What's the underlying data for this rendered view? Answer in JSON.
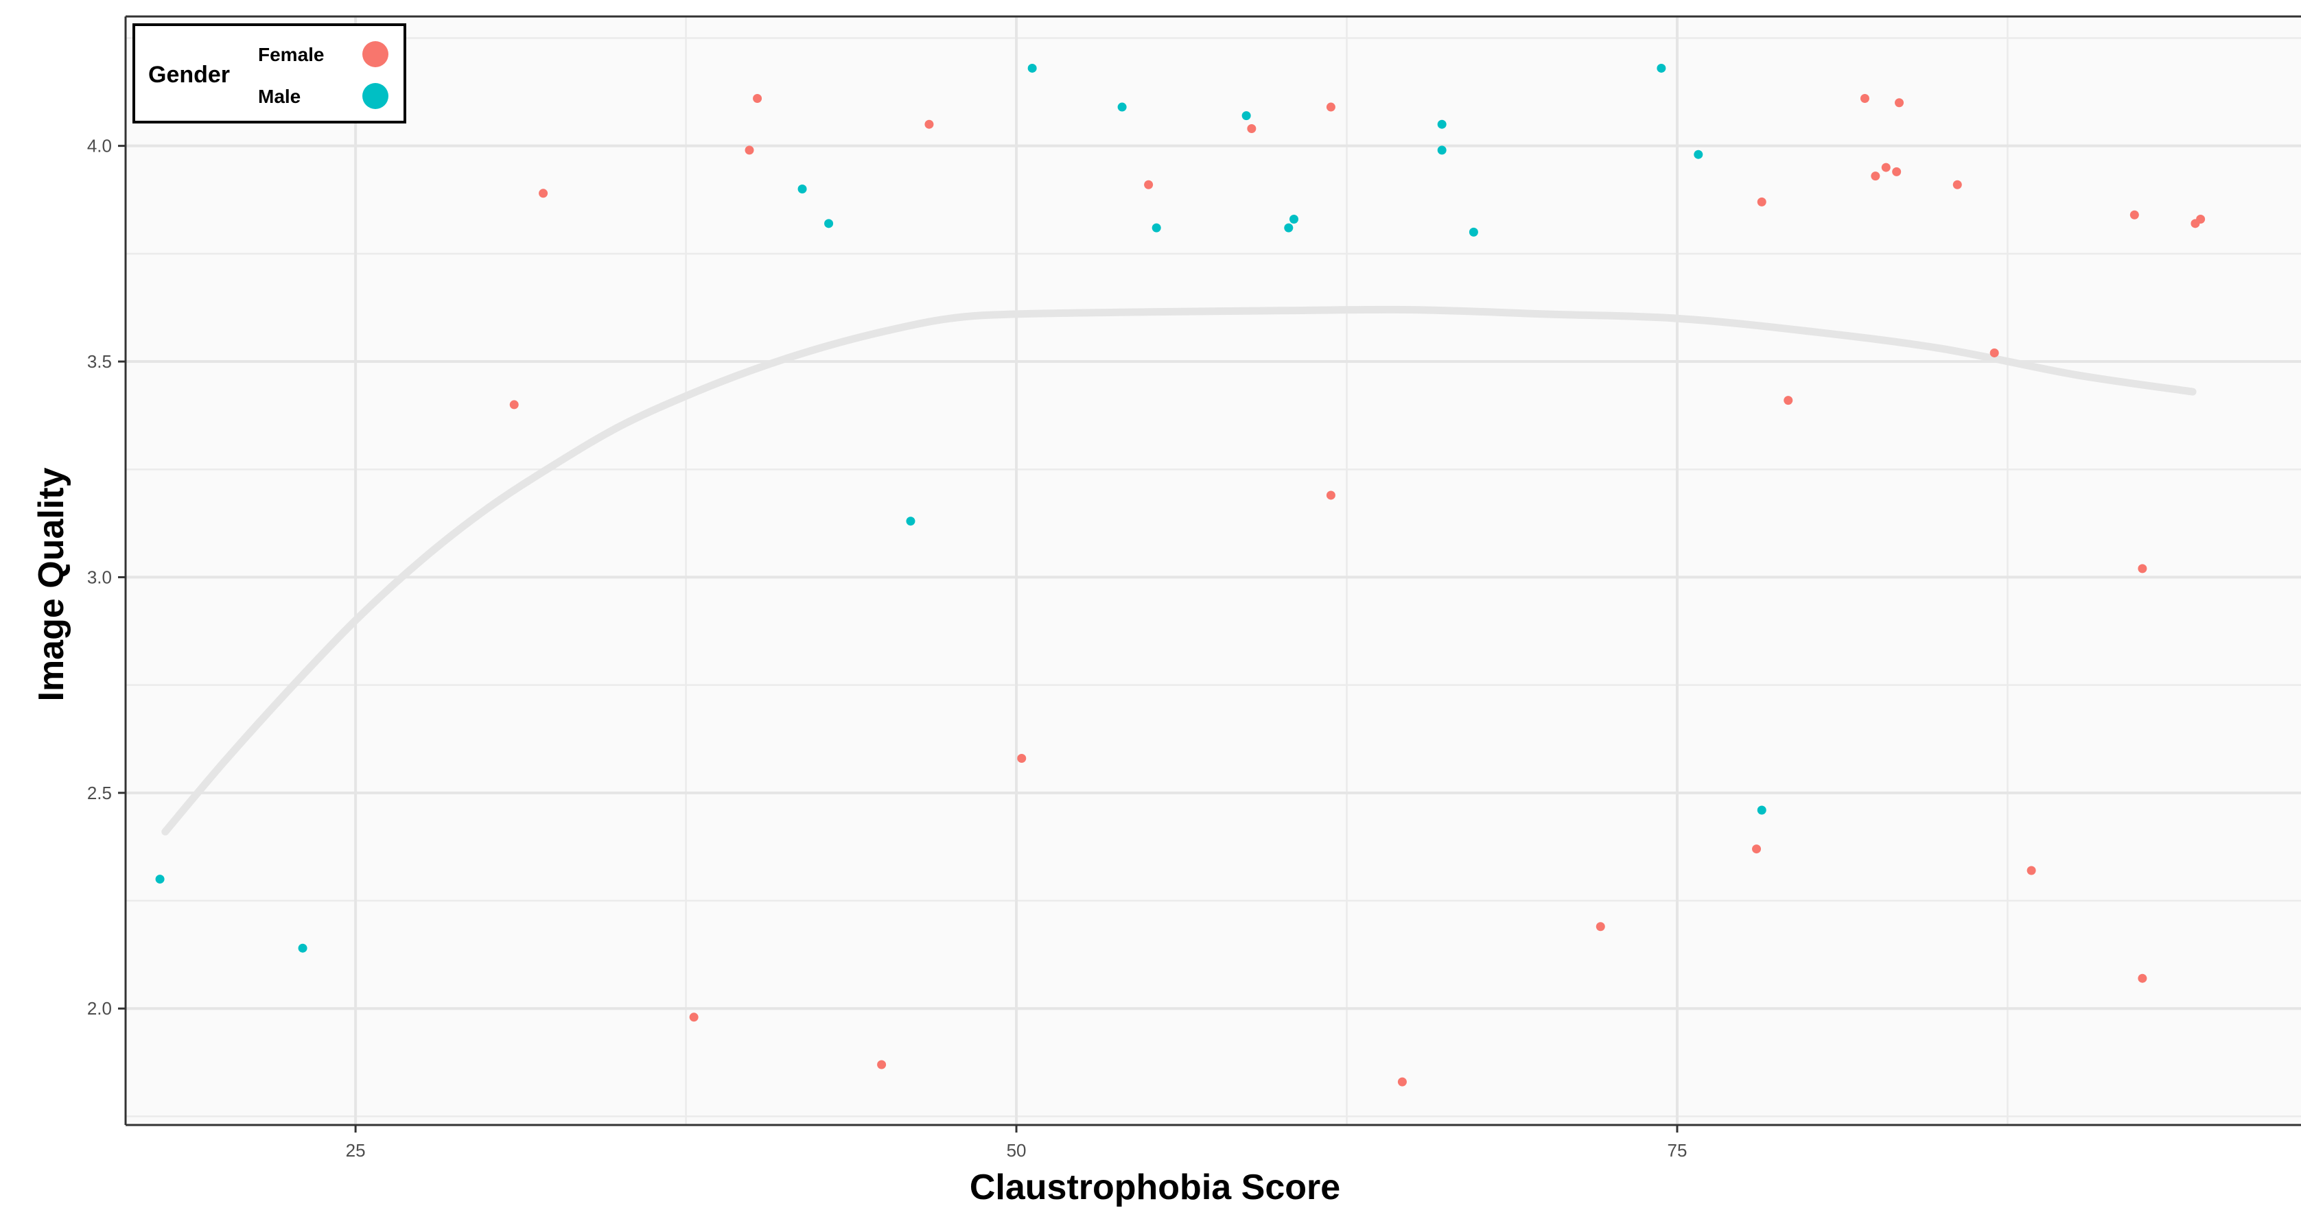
{
  "chart_data": {
    "type": "scatter",
    "title": "",
    "xlabel": "Claustrophobia Score",
    "ylabel": "Image Quality",
    "xlim": [
      16.3,
      98.6
    ],
    "ylim": [
      1.73,
      4.3
    ],
    "x_ticks": [
      25,
      50,
      75
    ],
    "x_tick_labels": [
      "25",
      "50",
      "75"
    ],
    "y_ticks": [
      2.0,
      2.5,
      3.0,
      3.5,
      4.0
    ],
    "y_tick_labels": [
      "2.0",
      "2.5",
      "3.0",
      "3.5",
      "4.0"
    ],
    "grid": true,
    "legend": {
      "position": "top-left",
      "title": "Gender",
      "entries": [
        {
          "label": "Female",
          "color": "#F8766D"
        },
        {
          "label": "Male",
          "color": "#00BFC4"
        }
      ]
    },
    "series": [
      {
        "name": "Female",
        "color": "#F8766D",
        "points": [
          [
            31.0,
            3.4
          ],
          [
            32.1,
            3.89
          ],
          [
            37.8,
            1.98
          ],
          [
            39.9,
            3.99
          ],
          [
            40.2,
            4.11
          ],
          [
            44.9,
            1.87
          ],
          [
            46.7,
            4.05
          ],
          [
            50.2,
            2.58
          ],
          [
            55.0,
            3.91
          ],
          [
            58.9,
            4.04
          ],
          [
            61.9,
            4.09
          ],
          [
            61.9,
            3.19
          ],
          [
            64.6,
            1.83
          ],
          [
            72.1,
            2.19
          ],
          [
            78.0,
            2.37
          ],
          [
            78.2,
            3.87
          ],
          [
            79.2,
            3.41
          ],
          [
            82.1,
            4.11
          ],
          [
            82.5,
            3.93
          ],
          [
            82.9,
            3.95
          ],
          [
            83.3,
            3.94
          ],
          [
            83.4,
            4.1
          ],
          [
            85.6,
            3.91
          ],
          [
            87.0,
            3.52
          ],
          [
            88.4,
            2.32
          ],
          [
            92.3,
            3.84
          ],
          [
            92.6,
            2.07
          ],
          [
            92.6,
            3.02
          ],
          [
            94.6,
            3.82
          ],
          [
            94.8,
            3.83
          ]
        ]
      },
      {
        "name": "Male",
        "color": "#00BFC4",
        "points": [
          [
            17.6,
            2.3
          ],
          [
            23.0,
            2.14
          ],
          [
            41.9,
            3.9
          ],
          [
            42.9,
            3.82
          ],
          [
            46.0,
            3.13
          ],
          [
            50.6,
            4.18
          ],
          [
            54.0,
            4.09
          ],
          [
            55.3,
            3.81
          ],
          [
            58.7,
            4.07
          ],
          [
            60.3,
            3.81
          ],
          [
            60.5,
            3.83
          ],
          [
            66.1,
            4.05
          ],
          [
            66.1,
            3.99
          ],
          [
            67.3,
            3.8
          ],
          [
            74.4,
            4.18
          ],
          [
            75.8,
            3.98
          ],
          [
            78.2,
            2.46
          ]
        ]
      }
    ],
    "smooth": {
      "color": "#e5e5e5",
      "points": [
        [
          17.8,
          2.41
        ],
        [
          20.0,
          2.57
        ],
        [
          22.5,
          2.74
        ],
        [
          25.0,
          2.9
        ],
        [
          27.5,
          3.04
        ],
        [
          30.0,
          3.16
        ],
        [
          32.5,
          3.26
        ],
        [
          35.0,
          3.35
        ],
        [
          37.5,
          3.42
        ],
        [
          40.0,
          3.48
        ],
        [
          42.5,
          3.53
        ],
        [
          45.0,
          3.57
        ],
        [
          47.5,
          3.6
        ],
        [
          50.0,
          3.61
        ],
        [
          55.0,
          3.615
        ],
        [
          60.0,
          3.618
        ],
        [
          65.0,
          3.62
        ],
        [
          70.0,
          3.61
        ],
        [
          75.0,
          3.6
        ],
        [
          80.0,
          3.57
        ],
        [
          85.0,
          3.53
        ],
        [
          90.0,
          3.47
        ],
        [
          94.5,
          3.43
        ]
      ]
    }
  }
}
